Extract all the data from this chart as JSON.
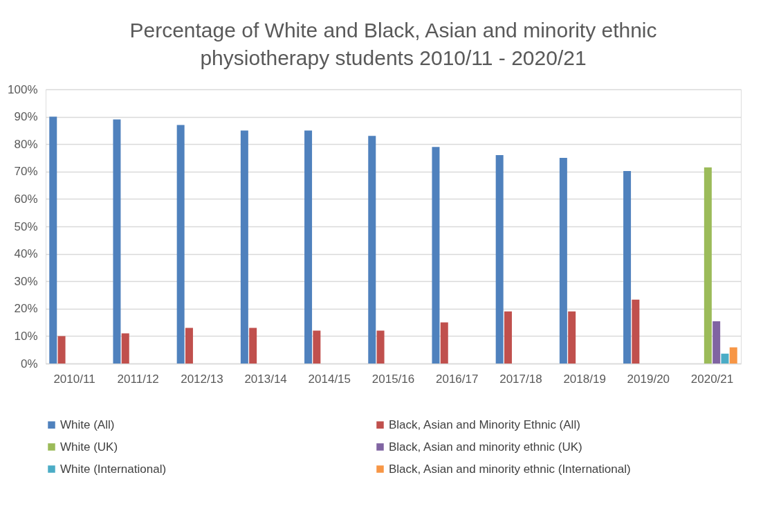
{
  "chart_data": {
    "type": "bar",
    "title": [
      "Percentage of White and Black, Asian and minority ethnic",
      "physiotherapy students 2010/11 - 2020/21"
    ],
    "categories": [
      "2010/11",
      "2011/12",
      "2012/13",
      "2013/14",
      "2014/15",
      "2015/16",
      "2016/17",
      "2017/18",
      "2018/19",
      "2019/20",
      "2020/21"
    ],
    "series": [
      {
        "name": "White (All)",
        "color": "#4f81bd",
        "values": [
          90,
          89,
          87,
          85,
          85,
          83,
          79,
          76,
          75,
          70.2,
          null
        ]
      },
      {
        "name": "Black, Asian and Minority Ethnic (All)",
        "color": "#c0504d",
        "values": [
          10,
          11,
          13,
          13,
          12,
          12,
          15,
          19,
          19,
          23.3,
          null
        ]
      },
      {
        "name": "White (UK)",
        "color": "#9bbb59",
        "values": [
          null,
          null,
          null,
          null,
          null,
          null,
          null,
          null,
          null,
          null,
          71.5
        ]
      },
      {
        "name": "Black, Asian and minority ethnic (UK)",
        "color": "#8064a2",
        "values": [
          null,
          null,
          null,
          null,
          null,
          null,
          null,
          null,
          null,
          null,
          15.4
        ]
      },
      {
        "name": "White (International)",
        "color": "#4bacc6",
        "values": [
          null,
          null,
          null,
          null,
          null,
          null,
          null,
          null,
          null,
          null,
          3.6
        ]
      },
      {
        "name": "Black, Asian and minority ethnic (International)",
        "color": "#f79646",
        "values": [
          null,
          null,
          null,
          null,
          null,
          null,
          null,
          null,
          null,
          null,
          5.9
        ]
      }
    ],
    "ylim": [
      0,
      100
    ],
    "yticks": [
      {
        "value": 0,
        "label": "0%"
      },
      {
        "value": 10,
        "label": "10%"
      },
      {
        "value": 20,
        "label": "20%"
      },
      {
        "value": 30,
        "label": "30%"
      },
      {
        "value": 40,
        "label": "40%"
      },
      {
        "value": 50,
        "label": "50%"
      },
      {
        "value": 60,
        "label": "60%"
      },
      {
        "value": 70,
        "label": "70%"
      },
      {
        "value": 80,
        "label": "80%"
      },
      {
        "value": 90,
        "label": "90%"
      },
      {
        "value": 100,
        "label": "100%"
      }
    ],
    "grid": "y",
    "legend": "bottom"
  }
}
